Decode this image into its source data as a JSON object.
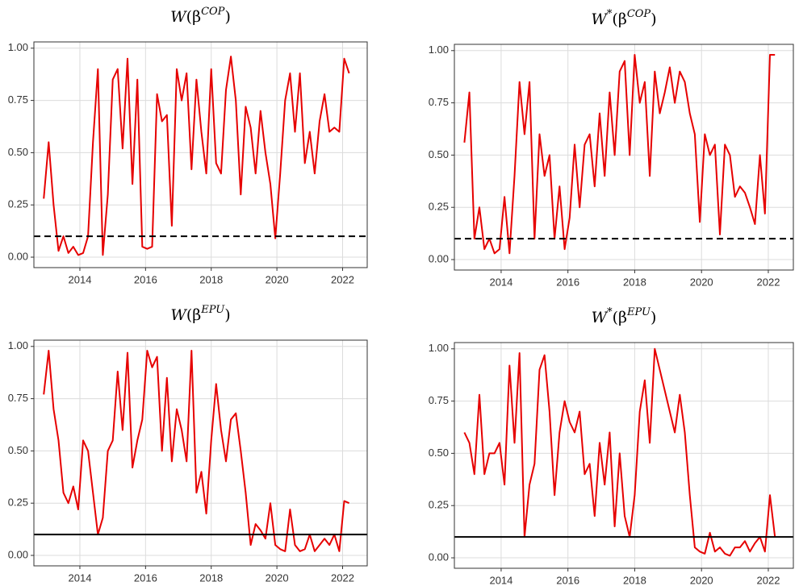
{
  "chart_data": [
    {
      "type": "line",
      "title": [
        {
          "text": "W",
          "italic": true
        },
        {
          "text": "(β"
        },
        {
          "text": "COP",
          "sup": true,
          "italic": true
        },
        {
          "text": ")"
        }
      ],
      "x": [
        2012.9,
        2013.05,
        2013.2,
        2013.35,
        2013.5,
        2013.65,
        2013.8,
        2013.95,
        2014.1,
        2014.25,
        2014.4,
        2014.55,
        2014.7,
        2014.85,
        2015.0,
        2015.15,
        2015.3,
        2015.45,
        2015.6,
        2015.75,
        2015.9,
        2016.05,
        2016.2,
        2016.35,
        2016.5,
        2016.65,
        2016.8,
        2016.95,
        2017.1,
        2017.25,
        2017.4,
        2017.55,
        2017.7,
        2017.85,
        2018.0,
        2018.15,
        2018.3,
        2018.45,
        2018.6,
        2018.75,
        2018.9,
        2019.05,
        2019.2,
        2019.35,
        2019.5,
        2019.65,
        2019.8,
        2019.95,
        2020.1,
        2020.25,
        2020.4,
        2020.55,
        2020.7,
        2020.85,
        2021.0,
        2021.15,
        2021.3,
        2021.45,
        2021.6,
        2021.75,
        2021.9,
        2022.05,
        2022.2
      ],
      "values": [
        0.28,
        0.55,
        0.25,
        0.03,
        0.1,
        0.02,
        0.05,
        0.01,
        0.02,
        0.1,
        0.55,
        0.9,
        0.01,
        0.3,
        0.85,
        0.9,
        0.52,
        0.95,
        0.35,
        0.85,
        0.05,
        0.04,
        0.05,
        0.78,
        0.65,
        0.68,
        0.15,
        0.9,
        0.75,
        0.88,
        0.42,
        0.85,
        0.6,
        0.4,
        0.9,
        0.45,
        0.4,
        0.8,
        0.96,
        0.75,
        0.3,
        0.72,
        0.62,
        0.4,
        0.7,
        0.5,
        0.35,
        0.09,
        0.4,
        0.75,
        0.88,
        0.6,
        0.88,
        0.45,
        0.6,
        0.4,
        0.65,
        0.78,
        0.6,
        0.62,
        0.6,
        0.95,
        0.88
      ],
      "color": "#e60000",
      "hline": {
        "value": 0.1,
        "style": "dashed"
      },
      "xlim": [
        2012.6,
        2022.75
      ],
      "ylim": [
        -0.05,
        1.03
      ],
      "xticks": [
        2014,
        2016,
        2018,
        2020,
        2022
      ],
      "yticks": [
        {
          "value": 0,
          "label": "0.00"
        },
        {
          "value": 0.25,
          "label": "0.25"
        },
        {
          "value": 0.5,
          "label": "0.50"
        },
        {
          "value": 0.75,
          "label": "0.75"
        },
        {
          "value": 1,
          "label": "1.00"
        }
      ],
      "grid": true
    },
    {
      "type": "line",
      "title": [
        {
          "text": "W",
          "italic": true
        },
        {
          "text": "*",
          "sup": true
        },
        {
          "text": "(β"
        },
        {
          "text": "COP",
          "sup": true,
          "italic": true
        },
        {
          "text": ")"
        }
      ],
      "x": [
        2012.9,
        2013.05,
        2013.2,
        2013.35,
        2013.5,
        2013.65,
        2013.8,
        2013.95,
        2014.1,
        2014.25,
        2014.4,
        2014.55,
        2014.7,
        2014.85,
        2015.0,
        2015.15,
        2015.3,
        2015.45,
        2015.6,
        2015.75,
        2015.9,
        2016.05,
        2016.2,
        2016.35,
        2016.5,
        2016.65,
        2016.8,
        2016.95,
        2017.1,
        2017.25,
        2017.4,
        2017.55,
        2017.7,
        2017.85,
        2018.0,
        2018.15,
        2018.3,
        2018.45,
        2018.6,
        2018.75,
        2018.9,
        2019.05,
        2019.2,
        2019.35,
        2019.5,
        2019.65,
        2019.8,
        2019.95,
        2020.1,
        2020.25,
        2020.4,
        2020.55,
        2020.7,
        2020.85,
        2021.0,
        2021.15,
        2021.3,
        2021.45,
        2021.6,
        2021.75,
        2021.9,
        2022.05,
        2022.2
      ],
      "values": [
        0.56,
        0.8,
        0.1,
        0.25,
        0.05,
        0.1,
        0.03,
        0.05,
        0.3,
        0.03,
        0.4,
        0.85,
        0.6,
        0.85,
        0.1,
        0.6,
        0.4,
        0.5,
        0.1,
        0.35,
        0.05,
        0.2,
        0.55,
        0.25,
        0.55,
        0.6,
        0.35,
        0.7,
        0.4,
        0.8,
        0.5,
        0.9,
        0.95,
        0.5,
        0.98,
        0.75,
        0.85,
        0.4,
        0.9,
        0.7,
        0.8,
        0.92,
        0.75,
        0.9,
        0.85,
        0.7,
        0.6,
        0.18,
        0.6,
        0.5,
        0.55,
        0.12,
        0.55,
        0.5,
        0.3,
        0.35,
        0.32,
        0.25,
        0.17,
        0.5,
        0.22,
        0.98,
        0.98
      ],
      "color": "#e60000",
      "hline": {
        "value": 0.1,
        "style": "dashed"
      },
      "xlim": [
        2012.6,
        2022.75
      ],
      "ylim": [
        -0.05,
        1.03
      ],
      "xticks": [
        2014,
        2016,
        2018,
        2020,
        2022
      ],
      "yticks": [
        {
          "value": 0,
          "label": "0.00"
        },
        {
          "value": 0.25,
          "label": "0.25"
        },
        {
          "value": 0.5,
          "label": "0.50"
        },
        {
          "value": 0.75,
          "label": "0.75"
        },
        {
          "value": 1,
          "label": "1.00"
        }
      ],
      "grid": true
    },
    {
      "type": "line",
      "title": [
        {
          "text": "W",
          "italic": true
        },
        {
          "text": "(β"
        },
        {
          "text": "EPU",
          "sup": true,
          "italic": true
        },
        {
          "text": ")"
        }
      ],
      "x": [
        2012.9,
        2013.05,
        2013.2,
        2013.35,
        2013.5,
        2013.65,
        2013.8,
        2013.95,
        2014.1,
        2014.25,
        2014.4,
        2014.55,
        2014.7,
        2014.85,
        2015.0,
        2015.15,
        2015.3,
        2015.45,
        2015.6,
        2015.75,
        2015.9,
        2016.05,
        2016.2,
        2016.35,
        2016.5,
        2016.65,
        2016.8,
        2016.95,
        2017.1,
        2017.25,
        2017.4,
        2017.55,
        2017.7,
        2017.85,
        2018.0,
        2018.15,
        2018.3,
        2018.45,
        2018.6,
        2018.75,
        2018.9,
        2019.05,
        2019.2,
        2019.35,
        2019.5,
        2019.65,
        2019.8,
        2019.95,
        2020.1,
        2020.25,
        2020.4,
        2020.55,
        2020.7,
        2020.85,
        2021.0,
        2021.15,
        2021.3,
        2021.45,
        2021.6,
        2021.75,
        2021.9,
        2022.05,
        2022.2
      ],
      "values": [
        0.77,
        0.98,
        0.7,
        0.55,
        0.3,
        0.25,
        0.33,
        0.22,
        0.55,
        0.5,
        0.3,
        0.1,
        0.18,
        0.5,
        0.55,
        0.88,
        0.6,
        0.97,
        0.42,
        0.55,
        0.65,
        0.98,
        0.9,
        0.95,
        0.5,
        0.85,
        0.45,
        0.7,
        0.6,
        0.45,
        0.98,
        0.3,
        0.4,
        0.2,
        0.55,
        0.82,
        0.6,
        0.45,
        0.65,
        0.68,
        0.5,
        0.3,
        0.05,
        0.15,
        0.12,
        0.08,
        0.25,
        0.05,
        0.03,
        0.02,
        0.22,
        0.05,
        0.02,
        0.03,
        0.1,
        0.02,
        0.05,
        0.08,
        0.05,
        0.1,
        0.02,
        0.26,
        0.25
      ],
      "color": "#e60000",
      "hline": {
        "value": 0.1,
        "style": "solid"
      },
      "xlim": [
        2012.6,
        2022.75
      ],
      "ylim": [
        -0.05,
        1.03
      ],
      "xticks": [
        2014,
        2016,
        2018,
        2020,
        2022
      ],
      "yticks": [
        {
          "value": 0,
          "label": "0.00"
        },
        {
          "value": 0.25,
          "label": "0.25"
        },
        {
          "value": 0.5,
          "label": "0.50"
        },
        {
          "value": 0.75,
          "label": "0.75"
        },
        {
          "value": 1,
          "label": "1.00"
        }
      ],
      "grid": true
    },
    {
      "type": "line",
      "title": [
        {
          "text": "W",
          "italic": true
        },
        {
          "text": "*",
          "sup": true
        },
        {
          "text": "(β"
        },
        {
          "text": "EPU",
          "sup": true,
          "italic": true
        },
        {
          "text": ")"
        }
      ],
      "x": [
        2012.9,
        2013.05,
        2013.2,
        2013.35,
        2013.5,
        2013.65,
        2013.8,
        2013.95,
        2014.1,
        2014.25,
        2014.4,
        2014.55,
        2014.7,
        2014.85,
        2015.0,
        2015.15,
        2015.3,
        2015.45,
        2015.6,
        2015.75,
        2015.9,
        2016.05,
        2016.2,
        2016.35,
        2016.5,
        2016.65,
        2016.8,
        2016.95,
        2017.1,
        2017.25,
        2017.4,
        2017.55,
        2017.7,
        2017.85,
        2018.0,
        2018.15,
        2018.3,
        2018.45,
        2018.6,
        2018.75,
        2018.9,
        2019.05,
        2019.2,
        2019.35,
        2019.5,
        2019.65,
        2019.8,
        2019.95,
        2020.1,
        2020.25,
        2020.4,
        2020.55,
        2020.7,
        2020.85,
        2021.0,
        2021.15,
        2021.3,
        2021.45,
        2021.6,
        2021.75,
        2021.9,
        2022.05,
        2022.2
      ],
      "values": [
        0.6,
        0.55,
        0.4,
        0.78,
        0.4,
        0.5,
        0.5,
        0.55,
        0.35,
        0.92,
        0.55,
        0.98,
        0.1,
        0.35,
        0.45,
        0.9,
        0.97,
        0.7,
        0.3,
        0.6,
        0.75,
        0.65,
        0.6,
        0.7,
        0.4,
        0.45,
        0.2,
        0.55,
        0.35,
        0.6,
        0.15,
        0.5,
        0.2,
        0.1,
        0.3,
        0.7,
        0.85,
        0.55,
        1.0,
        0.9,
        0.8,
        0.7,
        0.6,
        0.78,
        0.6,
        0.3,
        0.05,
        0.03,
        0.02,
        0.12,
        0.03,
        0.05,
        0.02,
        0.01,
        0.05,
        0.05,
        0.08,
        0.03,
        0.07,
        0.1,
        0.03,
        0.3,
        0.1
      ],
      "color": "#e60000",
      "hline": {
        "value": 0.1,
        "style": "solid"
      },
      "xlim": [
        2012.6,
        2022.75
      ],
      "ylim": [
        -0.05,
        1.03
      ],
      "xticks": [
        2014,
        2016,
        2018,
        2020,
        2022
      ],
      "yticks": [
        {
          "value": 0,
          "label": "0.00"
        },
        {
          "value": 0.25,
          "label": "0.25"
        },
        {
          "value": 0.5,
          "label": "0.50"
        },
        {
          "value": 0.75,
          "label": "0.75"
        },
        {
          "value": 1,
          "label": "1.00"
        }
      ],
      "grid": true
    }
  ]
}
